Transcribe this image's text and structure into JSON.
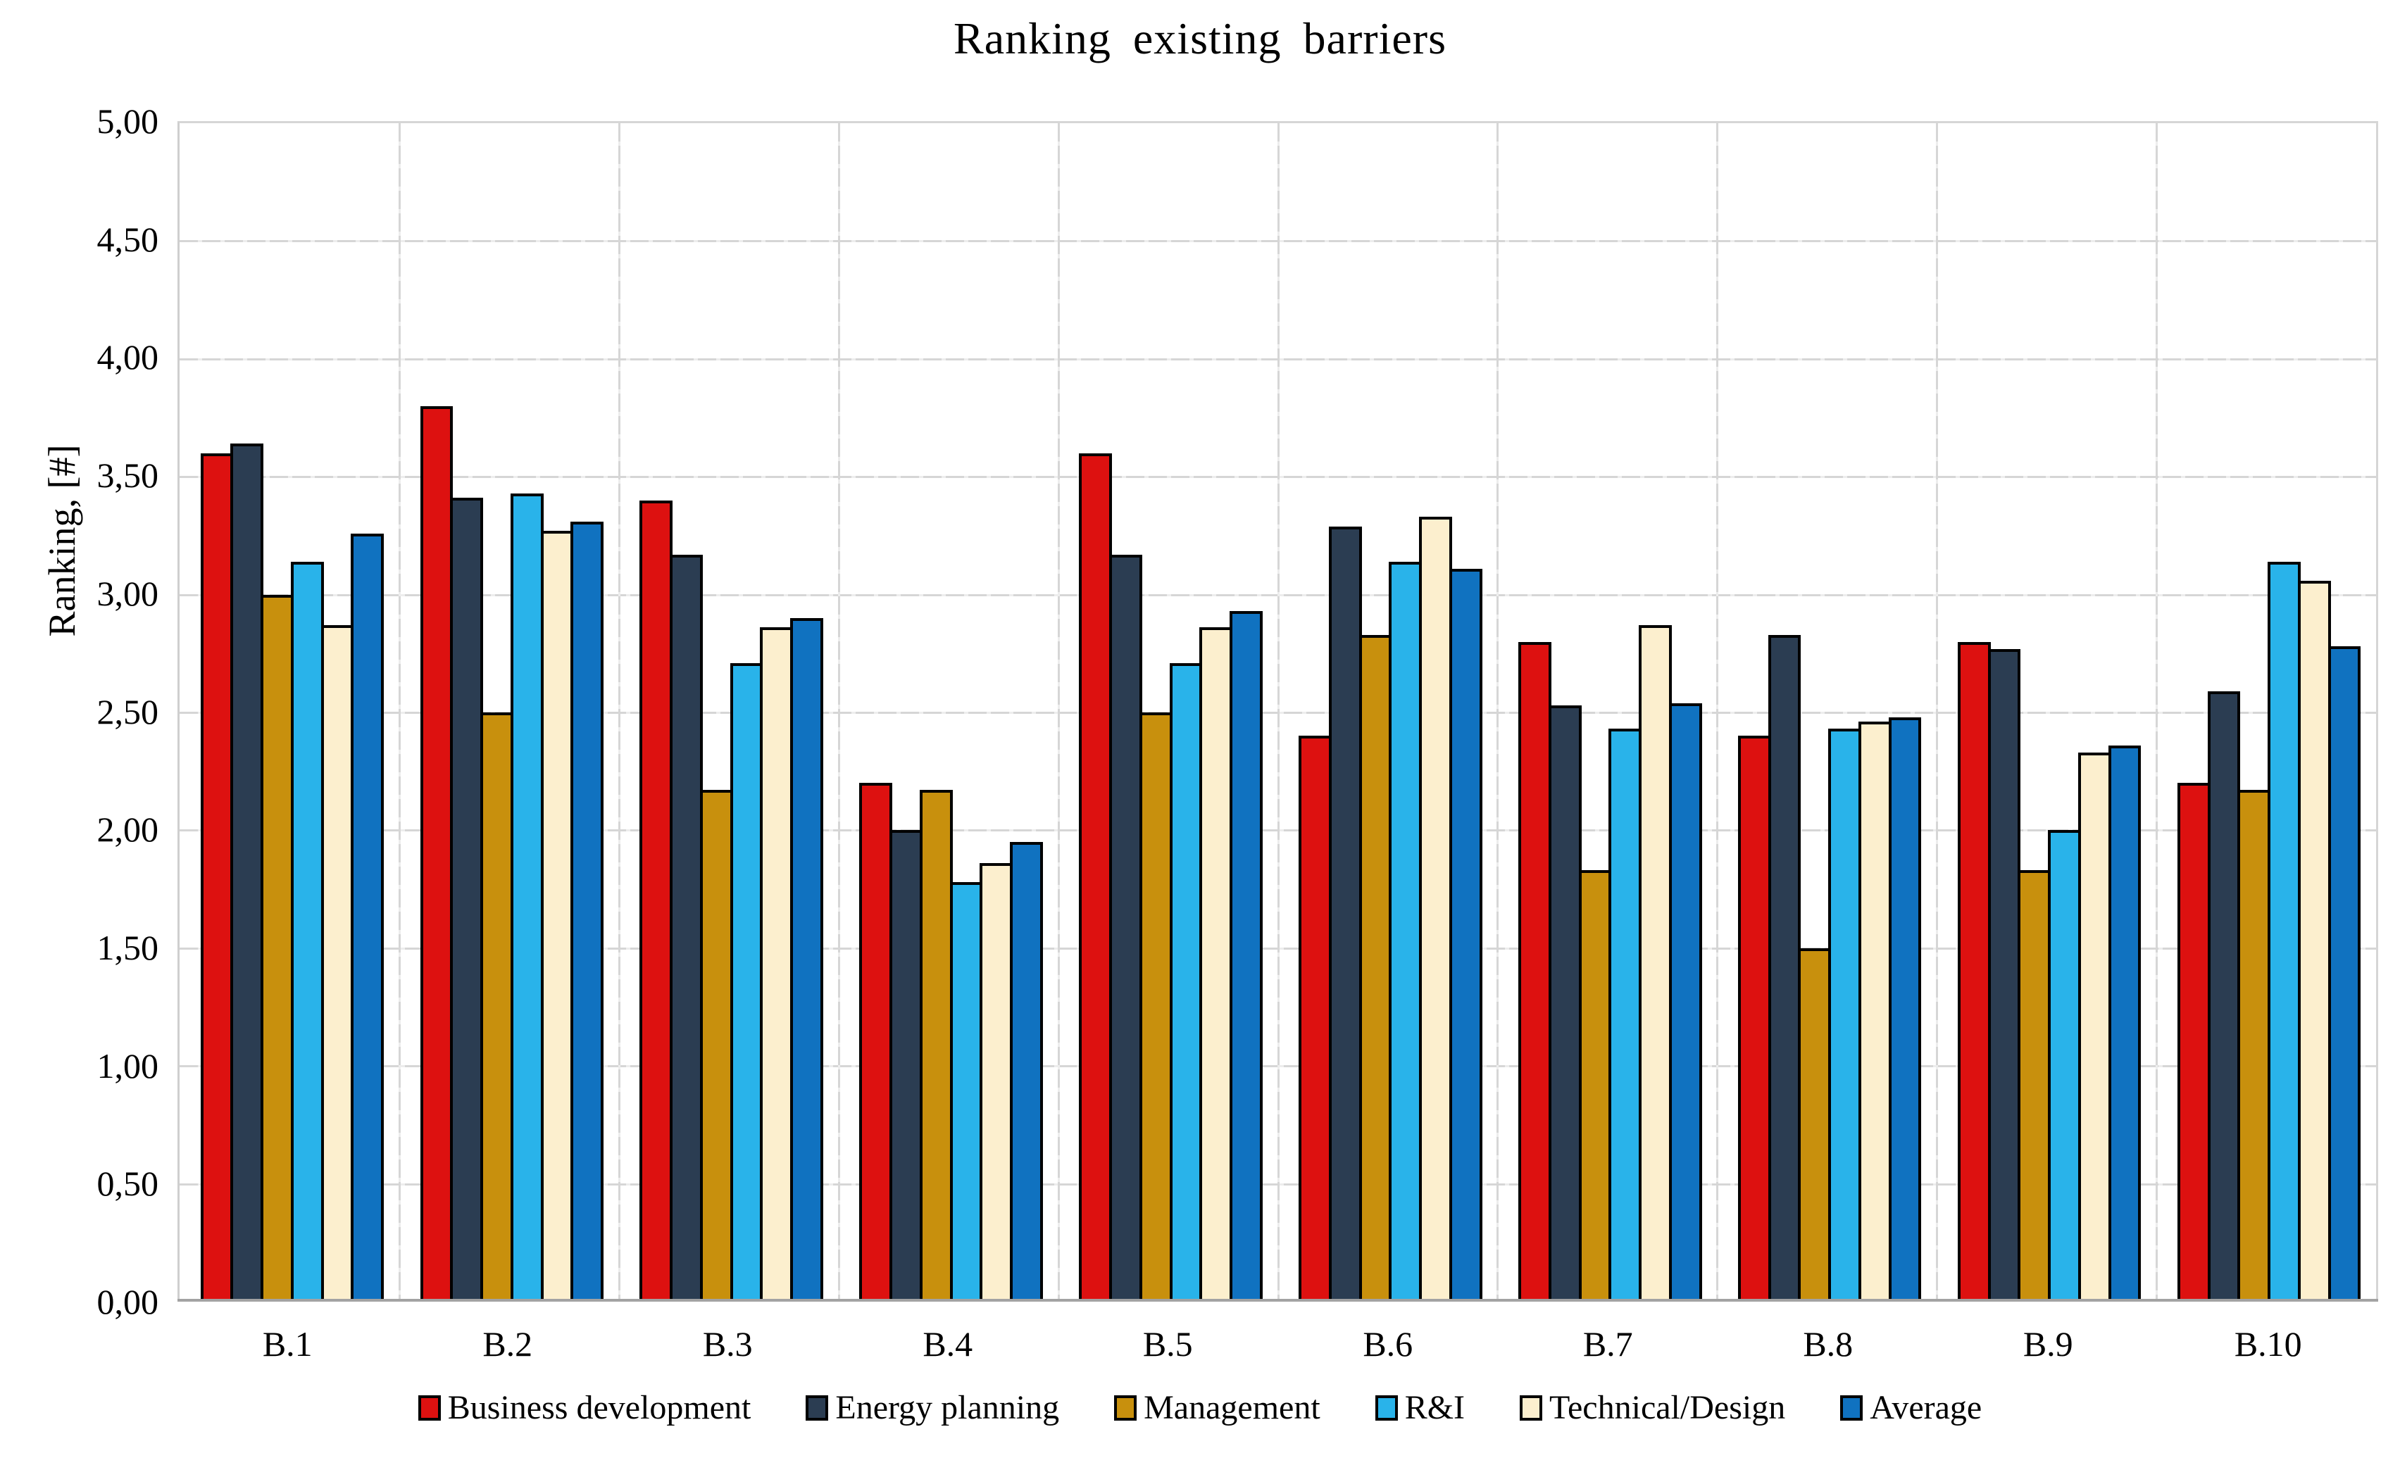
{
  "chart_data": {
    "type": "bar",
    "title": "Ranking existing barriers",
    "ylabel": "Ranking, [#]",
    "xlabel": "",
    "ylim": [
      0,
      5
    ],
    "y_tick_step": 0.5,
    "y_tick_labels_top_down": [
      "5,00",
      "4,50",
      "4,00",
      "3,50",
      "3,00",
      "2,50",
      "2,00",
      "1,50",
      "1,00",
      "0,50",
      "0,00"
    ],
    "grid": true,
    "legend_position": "bottom",
    "categories": [
      "B.1",
      "B.2",
      "B.3",
      "B.4",
      "B.5",
      "B.6",
      "B.7",
      "B.8",
      "B.9",
      "B.10"
    ],
    "series": [
      {
        "name": "Business development",
        "color": "#DD1110",
        "values": [
          3.6,
          3.8,
          3.4,
          2.2,
          3.6,
          2.4,
          2.8,
          2.4,
          2.8,
          2.2
        ]
      },
      {
        "name": "Energy planning",
        "color": "#2B3D52",
        "values": [
          3.64,
          3.41,
          3.17,
          2.0,
          3.17,
          3.29,
          2.53,
          2.83,
          2.77,
          2.59
        ]
      },
      {
        "name": "Management",
        "color": "#C8900D",
        "values": [
          3.0,
          2.5,
          2.17,
          2.17,
          2.5,
          2.83,
          1.83,
          1.5,
          1.83,
          2.17
        ]
      },
      {
        "name": "R&I",
        "color": "#29B3EA",
        "values": [
          3.14,
          3.43,
          2.71,
          1.78,
          2.71,
          3.14,
          2.43,
          2.43,
          2.0,
          3.14
        ]
      },
      {
        "name": "Technical/Design",
        "color": "#FCEFCE",
        "values": [
          2.87,
          3.27,
          2.86,
          1.86,
          2.86,
          3.33,
          2.87,
          2.46,
          2.33,
          3.06
        ]
      },
      {
        "name": "Average",
        "color": "#1072C0",
        "values": [
          3.26,
          3.31,
          2.9,
          1.95,
          2.93,
          3.11,
          2.54,
          2.48,
          2.36,
          2.78
        ]
      }
    ]
  },
  "colors": {
    "background": "#FFFFFF",
    "gridline": "#D6D6D6",
    "axis_line": "#A3A3A3",
    "bar_border": "#000000",
    "text": "#000000"
  }
}
